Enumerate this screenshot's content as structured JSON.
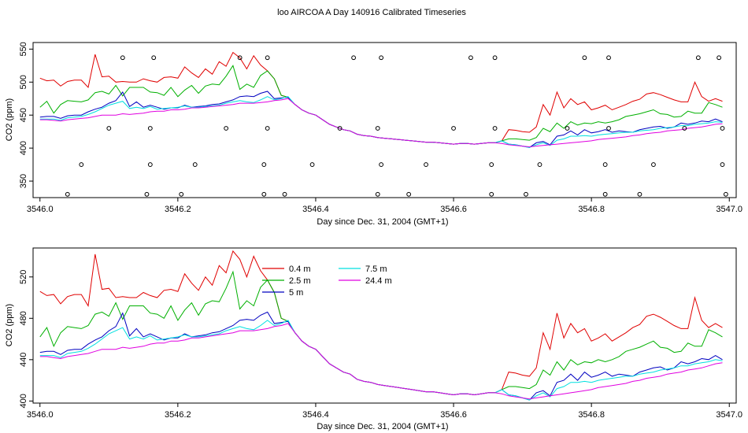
{
  "title": "loo AIRCOA A  Day 140916  Calibrated Timeseries",
  "colors": {
    "0.4 m": "#e00000",
    "2.5 m": "#00b000",
    "5 m": "#0000c0",
    "7.5 m": "#00e0e0",
    "24.4 m": "#e000e0",
    "axis": "#000000"
  },
  "chart_data": [
    {
      "type": "scatter",
      "xlabel": "Day since Dec. 31, 2004 (GMT+1)",
      "ylabel": "CO2 (ppm)",
      "xlim": [
        3545.99,
        3547.01
      ],
      "ylim": [
        325,
        560
      ],
      "xticks": [
        3546.0,
        3546.2,
        3546.4,
        3546.6,
        3546.8,
        3547.0
      ],
      "xtick_labels": [
        "3546.0",
        "3546.2",
        "3546.4",
        "3546.6",
        "3546.8",
        "3547.0"
      ],
      "yticks": [
        350,
        400,
        450,
        500,
        550
      ],
      "ytick_labels": [
        "350",
        "400",
        "450",
        "500",
        "550"
      ],
      "x": [
        3546.0,
        3546.01,
        3546.02,
        3546.03,
        3546.04,
        3546.05,
        3546.06,
        3546.07,
        3546.08,
        3546.09,
        3546.1,
        3546.11,
        3546.12,
        3546.13,
        3546.14,
        3546.15,
        3546.16,
        3546.17,
        3546.18,
        3546.19,
        3546.2,
        3546.21,
        3546.22,
        3546.23,
        3546.24,
        3546.25,
        3546.26,
        3546.27,
        3546.28,
        3546.29,
        3546.3,
        3546.31,
        3546.32,
        3546.33,
        3546.34,
        3546.35,
        3546.36,
        3546.37,
        3546.38,
        3546.39,
        3546.4,
        3546.41,
        3546.42,
        3546.43,
        3546.44,
        3546.45,
        3546.46,
        3546.47,
        3546.48,
        3546.49,
        3546.5,
        3546.51,
        3546.52,
        3546.53,
        3546.54,
        3546.55,
        3546.56,
        3546.57,
        3546.58,
        3546.59,
        3546.6,
        3546.61,
        3546.62,
        3546.63,
        3546.64,
        3546.65,
        3546.66,
        3546.67,
        3546.68,
        3546.69,
        3546.7,
        3546.71,
        3546.72,
        3546.73,
        3546.74,
        3546.75,
        3546.76,
        3546.77,
        3546.78,
        3546.79,
        3546.8,
        3546.81,
        3546.82,
        3546.83,
        3546.84,
        3546.85,
        3546.86,
        3546.87,
        3546.88,
        3546.89,
        3546.9,
        3546.91,
        3546.92,
        3546.93,
        3546.94,
        3546.95,
        3546.96,
        3546.97,
        3546.98,
        3546.99
      ],
      "series": [
        {
          "name": "0.4 m",
          "mode": "line",
          "values": [
            506,
            502,
            503,
            494,
            501,
            503,
            503,
            492,
            542,
            508,
            509,
            500,
            501,
            500,
            500,
            505,
            502,
            500,
            507,
            508,
            506,
            523,
            514,
            507,
            520,
            512,
            531,
            524,
            545,
            537,
            520,
            540,
            526,
            517,
            505,
            480,
            477,
            466,
            458,
            453,
            450,
            443,
            436,
            432,
            428,
            426,
            421,
            419,
            418,
            416,
            415,
            414,
            413,
            412,
            411,
            410,
            409,
            409,
            408,
            407,
            406,
            407,
            407,
            406,
            407,
            408,
            408,
            411,
            428,
            427,
            425,
            424,
            432,
            466,
            450,
            485,
            461,
            475,
            466,
            470,
            458,
            461,
            465,
            458,
            462,
            466,
            471,
            474,
            482,
            484,
            481,
            477,
            473,
            470,
            470,
            500,
            478,
            471,
            475,
            471
          ]
        },
        {
          "name": "2.5 m",
          "mode": "line",
          "values": [
            462,
            471,
            453,
            466,
            472,
            471,
            470,
            473,
            484,
            486,
            482,
            495,
            479,
            492,
            492,
            492,
            485,
            484,
            480,
            492,
            478,
            488,
            495,
            483,
            494,
            497,
            496,
            509,
            525,
            489,
            497,
            492,
            510,
            517,
            505,
            480,
            477,
            466,
            458,
            453,
            450,
            443,
            436,
            432,
            428,
            426,
            421,
            419,
            418,
            416,
            415,
            414,
            413,
            412,
            411,
            410,
            409,
            409,
            408,
            407,
            406,
            407,
            407,
            406,
            407,
            408,
            408,
            411,
            414,
            414,
            413,
            412,
            416,
            430,
            425,
            438,
            430,
            440,
            435,
            438,
            437,
            440,
            438,
            440,
            443,
            448,
            450,
            452,
            455,
            458,
            452,
            451,
            447,
            448,
            456,
            453,
            453,
            469,
            466,
            462
          ]
        },
        {
          "name": "5 m",
          "mode": "line",
          "values": [
            447,
            448,
            448,
            445,
            449,
            450,
            450,
            455,
            459,
            462,
            468,
            472,
            485,
            463,
            470,
            462,
            465,
            462,
            459,
            461,
            461,
            465,
            462,
            463,
            464,
            466,
            467,
            470,
            473,
            478,
            479,
            478,
            483,
            486,
            475,
            476,
            477,
            466,
            458,
            453,
            450,
            443,
            436,
            432,
            428,
            426,
            421,
            419,
            418,
            416,
            415,
            414,
            413,
            412,
            411,
            410,
            409,
            409,
            408,
            407,
            406,
            407,
            407,
            406,
            407,
            408,
            408,
            411,
            406,
            405,
            403,
            401,
            408,
            410,
            405,
            418,
            420,
            426,
            420,
            428,
            423,
            425,
            428,
            424,
            426,
            425,
            424,
            428,
            430,
            432,
            433,
            430,
            432,
            438,
            436,
            438,
            441,
            440,
            444,
            440
          ]
        },
        {
          "name": "7.5 m",
          "mode": "line",
          "values": [
            444,
            444,
            444,
            442,
            446,
            447,
            448,
            451,
            455,
            460,
            465,
            468,
            471,
            460,
            462,
            460,
            463,
            459,
            460,
            461,
            462,
            464,
            462,
            462,
            463,
            464,
            465,
            468,
            470,
            472,
            470,
            469,
            473,
            478,
            473,
            475,
            478,
            466,
            458,
            453,
            450,
            443,
            436,
            432,
            428,
            426,
            421,
            419,
            418,
            416,
            415,
            414,
            413,
            412,
            411,
            410,
            409,
            409,
            408,
            407,
            406,
            407,
            407,
            406,
            407,
            408,
            408,
            411,
            406,
            405,
            403,
            401,
            405,
            408,
            404,
            412,
            414,
            418,
            418,
            419,
            418,
            420,
            421,
            422,
            423,
            424,
            424,
            426,
            427,
            428,
            430,
            431,
            432,
            434,
            434,
            436,
            437,
            438,
            440,
            439
          ]
        },
        {
          "name": "24.4 m",
          "mode": "line",
          "values": [
            443,
            443,
            442,
            441,
            443,
            444,
            445,
            446,
            448,
            450,
            450,
            450,
            452,
            451,
            452,
            453,
            455,
            456,
            456,
            458,
            458,
            459,
            461,
            461,
            462,
            463,
            464,
            465,
            466,
            468,
            468,
            468,
            469,
            470,
            472,
            473,
            475,
            466,
            458,
            453,
            450,
            443,
            436,
            432,
            428,
            426,
            421,
            419,
            418,
            416,
            415,
            414,
            413,
            412,
            411,
            410,
            409,
            409,
            408,
            407,
            406,
            407,
            407,
            406,
            407,
            408,
            408,
            407,
            405,
            404,
            403,
            402,
            403,
            404,
            405,
            406,
            407,
            408,
            409,
            410,
            411,
            413,
            414,
            415,
            416,
            417,
            419,
            420,
            422,
            423,
            424,
            426,
            427,
            428,
            430,
            431,
            432,
            434,
            436,
            437
          ]
        }
      ],
      "points": {
        "x": [
          3546.04,
          3546.06,
          3546.1,
          3546.12,
          3546.155,
          3546.16,
          3546.16,
          3546.165,
          3546.205,
          3546.225,
          3546.27,
          3546.29,
          3546.325,
          3546.325,
          3546.33,
          3546.33,
          3546.355,
          3546.395,
          3546.435,
          3546.455,
          3546.49,
          3546.495,
          3546.49,
          3546.495,
          3546.535,
          3546.56,
          3546.6,
          3546.625,
          3546.655,
          3546.655,
          3546.66,
          3546.66,
          3546.705,
          3546.725,
          3546.765,
          3546.79,
          3546.82,
          3546.82,
          3546.825,
          3546.825,
          3546.87,
          3546.89,
          3546.935,
          3546.955,
          3546.985,
          3546.99,
          3546.99,
          3546.995
        ],
        "y": [
          330,
          375,
          430,
          537,
          330,
          375,
          430,
          537,
          330,
          375,
          430,
          537,
          330,
          375,
          430,
          537,
          330,
          375,
          430,
          537,
          330,
          375,
          430,
          537,
          330,
          375,
          430,
          537,
          330,
          375,
          430,
          537,
          330,
          375,
          430,
          537,
          330,
          375,
          430,
          537,
          330,
          375,
          430,
          537,
          537,
          430,
          375,
          330
        ]
      }
    },
    {
      "type": "line",
      "xlabel": "Day since Dec. 31, 2004 (GMT+1)",
      "ylabel": "CO2 (ppm)",
      "xlim": [
        3545.99,
        3547.01
      ],
      "ylim": [
        398,
        548
      ],
      "xticks": [
        3546.0,
        3546.2,
        3546.4,
        3546.6,
        3546.8,
        3547.0
      ],
      "xtick_labels": [
        "3546.0",
        "3546.2",
        "3546.4",
        "3546.6",
        "3546.8",
        "3547.0"
      ],
      "yticks": [
        400,
        440,
        480,
        520
      ],
      "ytick_labels": [
        "400",
        "440",
        "480",
        "520"
      ],
      "legend": {
        "placement": "top-center",
        "entries": [
          "0.4 m",
          "2.5 m",
          "5 m",
          "7.5 m",
          "24.4 m"
        ]
      }
    }
  ]
}
